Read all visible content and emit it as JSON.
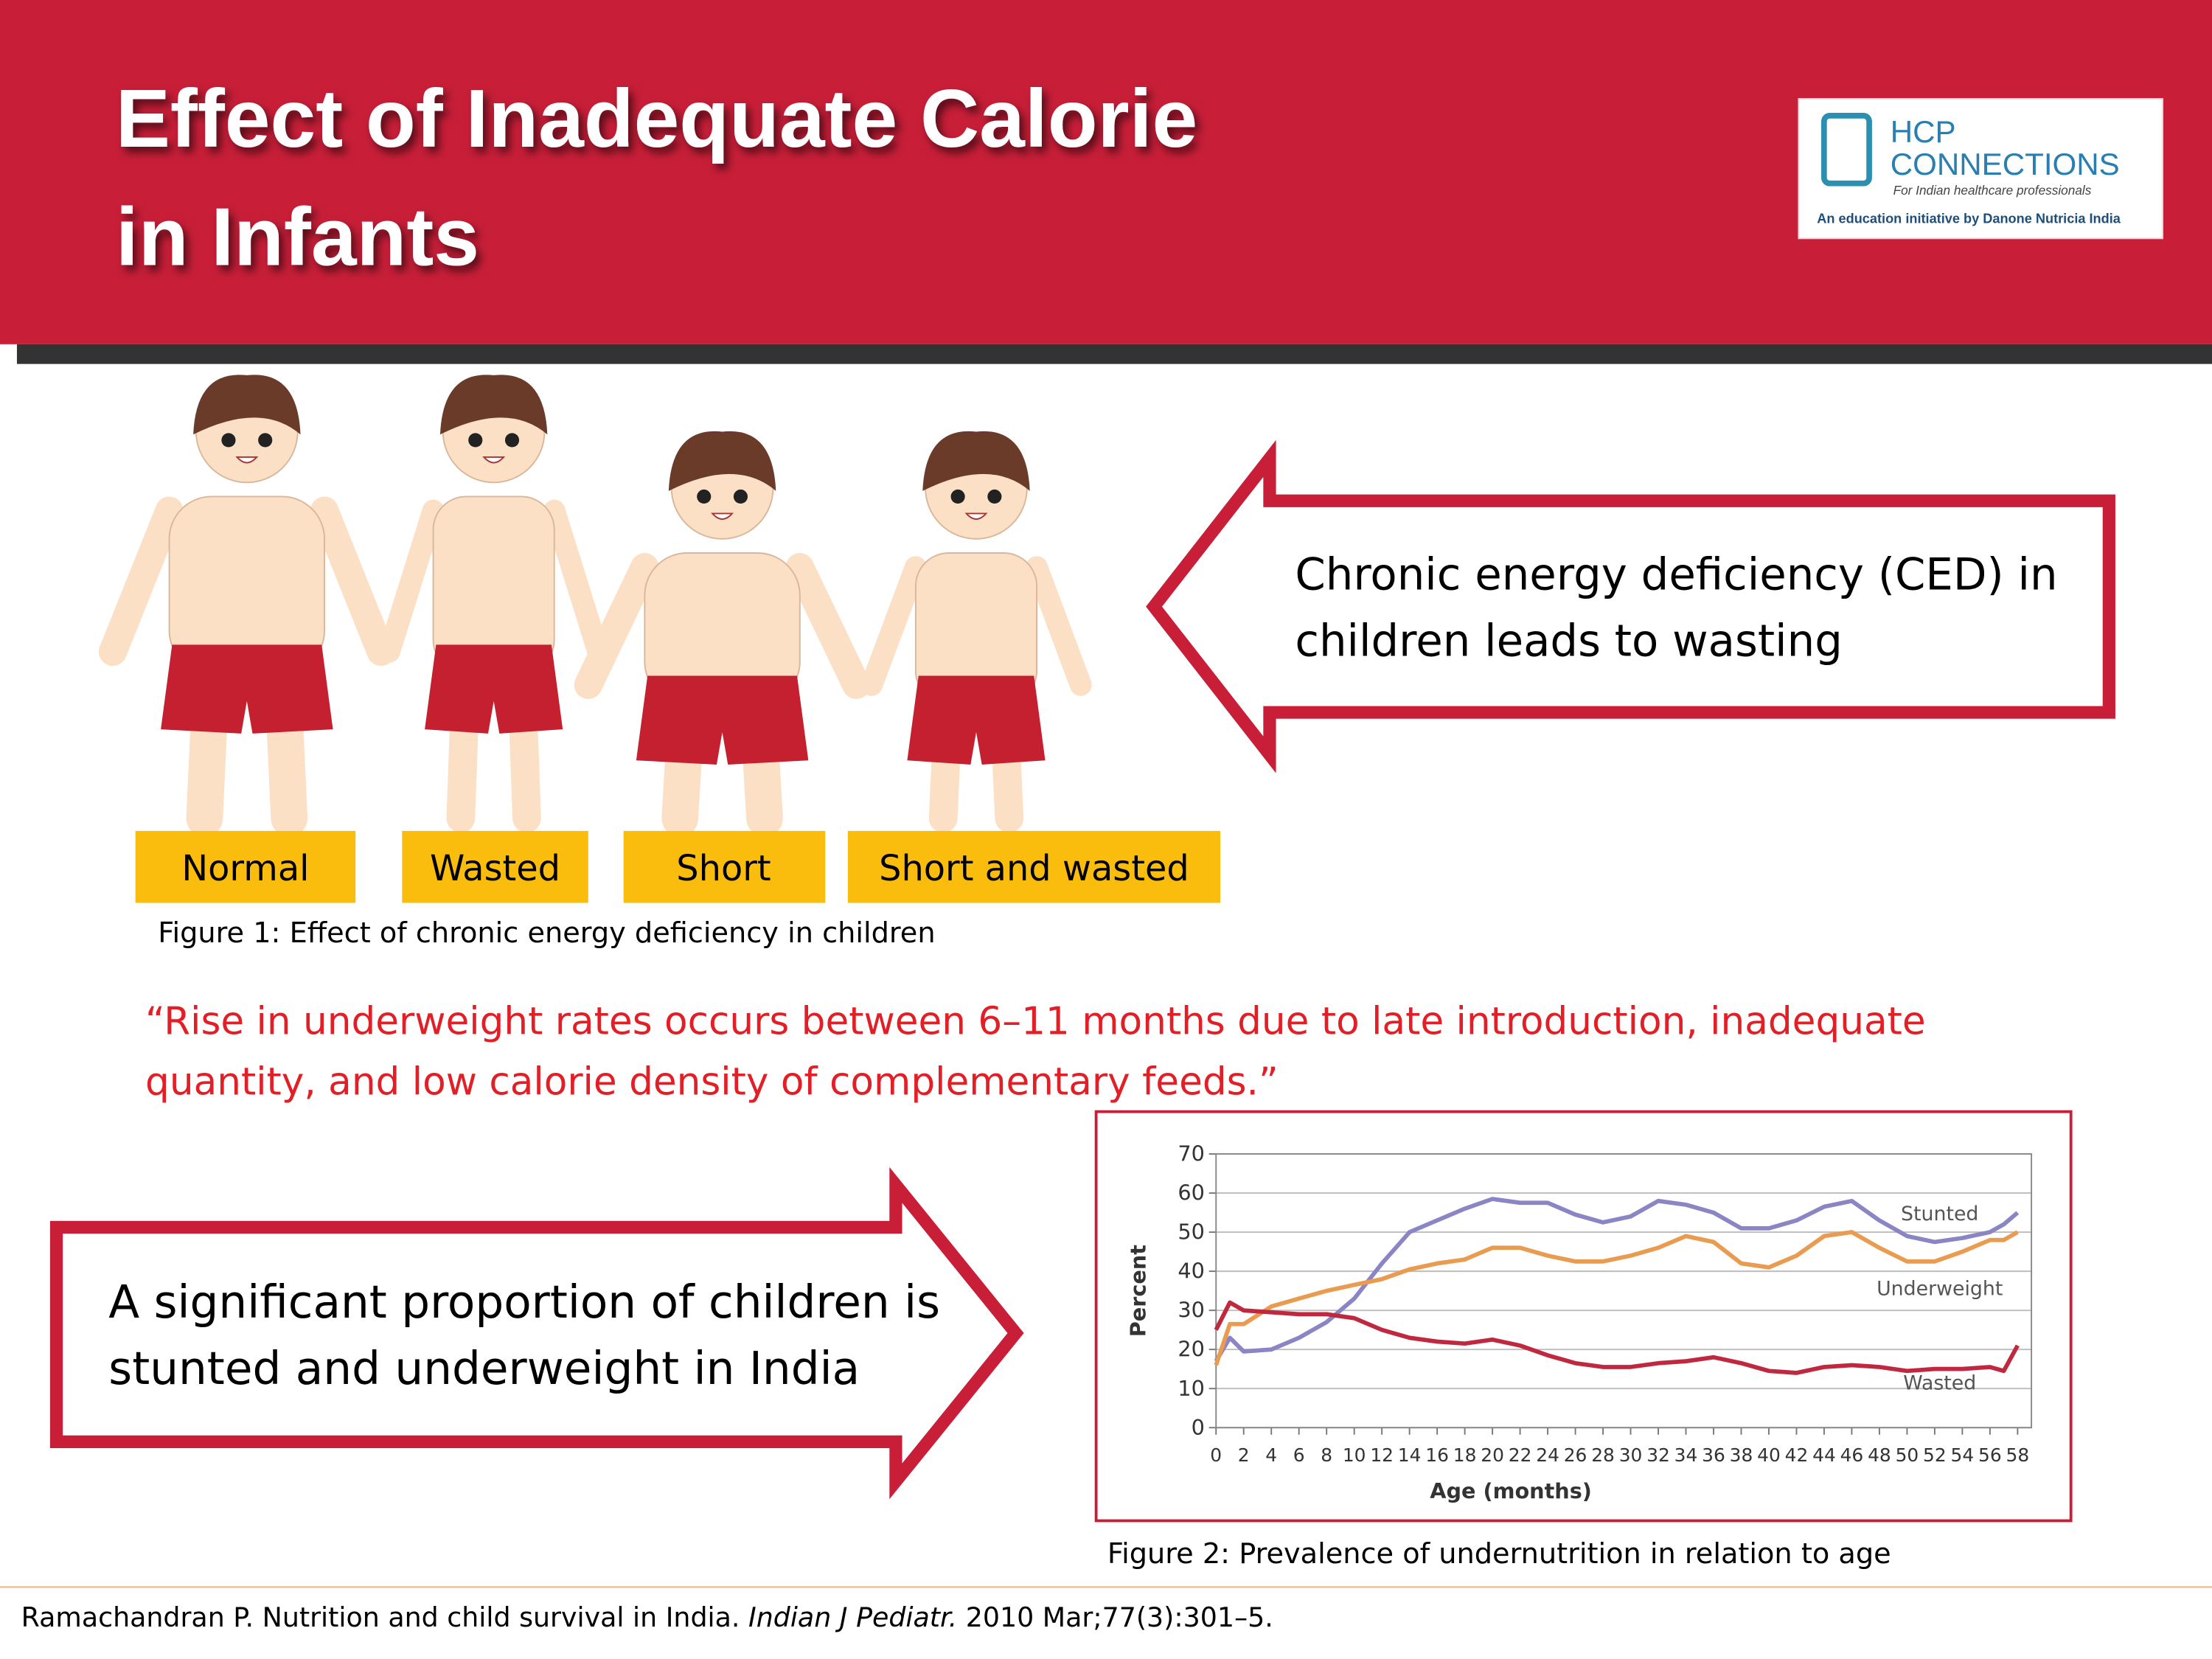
{
  "header": {
    "title_lines": [
      "Effect of Inadequate Calorie",
      "in Infants"
    ],
    "logo": {
      "brand": "HCP",
      "name": "CONNECTIONS",
      "tagline": "For Indian healthcare professionals",
      "initiative": "An education initiative by Danone Nutricia India"
    }
  },
  "figure1": {
    "labels": [
      "Normal",
      "Wasted",
      "Short",
      "Short and wasted"
    ],
    "caption": "Figure 1: Effect of chronic energy deficiency in children"
  },
  "callout1": {
    "lines": [
      "Chronic energy deficiency (CED) in",
      "children leads to wasting"
    ]
  },
  "quote": {
    "lines": [
      "“Rise in underweight rates occurs between 6–11 months due to late introduction, inadequate",
      "quantity, and low calorie density of complementary feeds.”"
    ]
  },
  "callout2": {
    "lines": [
      "A significant proportion of children is",
      "stunted and underweight in India"
    ]
  },
  "chart_data": {
    "type": "line",
    "x_label": "Age (months)",
    "y_label": "Percent",
    "x": [
      0,
      1,
      2,
      4,
      6,
      8,
      10,
      12,
      14,
      16,
      18,
      20,
      22,
      24,
      26,
      28,
      30,
      32,
      34,
      36,
      38,
      40,
      42,
      44,
      46,
      48,
      50,
      52,
      54,
      56,
      57,
      58
    ],
    "series": [
      {
        "name": "Stunted",
        "color": "#8a85c4",
        "values": [
          17,
          23,
          19.5,
          20,
          23,
          27,
          33,
          42,
          50,
          53,
          56,
          58.5,
          57.5,
          57.5,
          54.5,
          52.5,
          54,
          58,
          57,
          55,
          51,
          51,
          53,
          56.5,
          58,
          53,
          49,
          47.5,
          48.5,
          50,
          52,
          55
        ]
      },
      {
        "name": "Underweight",
        "color": "#e99b4f",
        "values": [
          16,
          26.5,
          26.5,
          31,
          33,
          35,
          36.5,
          38,
          40.5,
          42,
          43,
          46,
          46,
          44,
          42.5,
          42.5,
          44,
          46,
          49,
          47.5,
          42,
          41,
          44,
          49,
          50,
          46,
          42.5,
          42.5,
          45,
          48,
          48,
          50
        ]
      },
      {
        "name": "Wasted",
        "color": "#c0283f",
        "values": [
          25,
          32,
          30,
          29.5,
          29,
          29,
          28,
          25,
          23,
          22,
          21.5,
          22.5,
          21,
          18.5,
          16.5,
          15.5,
          15.5,
          16.5,
          17,
          18,
          16.5,
          14.5,
          14,
          15.5,
          16,
          15.5,
          14.5,
          15,
          15,
          15.5,
          14.5,
          21
        ]
      }
    ],
    "xlim": [
      0,
      59
    ],
    "xticks": [
      0,
      2,
      4,
      6,
      8,
      10,
      12,
      14,
      16,
      18,
      20,
      22,
      24,
      26,
      28,
      30,
      32,
      34,
      36,
      38,
      40,
      42,
      44,
      46,
      48,
      50,
      52,
      54,
      56,
      58
    ],
    "ylim": [
      0,
      70
    ],
    "yticks": [
      0,
      10,
      20,
      30,
      40,
      50,
      60,
      70
    ],
    "grid": true
  },
  "figure2": {
    "caption": "Figure 2: Prevalence of undernutrition in relation to age"
  },
  "citation": {
    "before": "Ramachandran P. Nutrition and child survival in India. ",
    "journal": "Indian J Pediatr.",
    "after": " 2010 Mar;77(3):301–5."
  }
}
